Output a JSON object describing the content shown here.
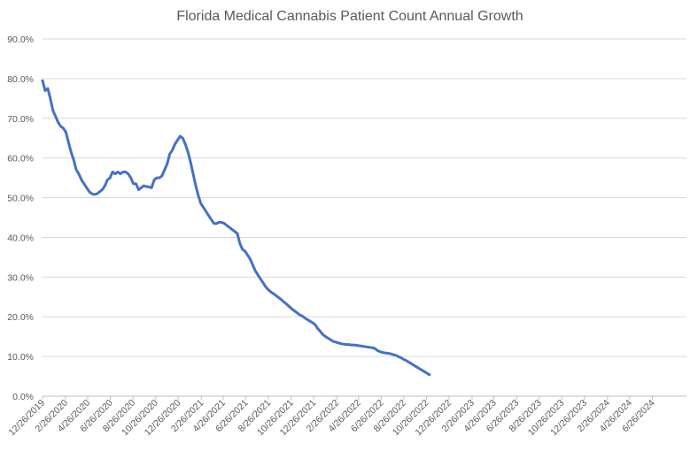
{
  "chart_data": {
    "type": "line",
    "title": "Florida Medical Cannabis Patient Count Annual Growth",
    "xlabel": "",
    "ylabel": "",
    "grid": true,
    "legend": "none",
    "series_color": "#4472c4",
    "y_ticks": [
      "0.0%",
      "10.0%",
      "20.0%",
      "30.0%",
      "40.0%",
      "50.0%",
      "60.0%",
      "70.0%",
      "80.0%",
      "90.0%"
    ],
    "ylim": [
      0,
      90
    ],
    "x_ticks": [
      "12/26/2019",
      "2/26/2020",
      "4/26/2020",
      "6/26/2020",
      "8/26/2020",
      "10/26/2020",
      "12/26/2020",
      "2/26/2021",
      "4/26/2021",
      "6/26/2021",
      "8/26/2021",
      "10/26/2021",
      "12/26/2021",
      "2/26/2022",
      "4/26/2022",
      "6/26/2022",
      "8/26/2022",
      "10/26/2022",
      "12/26/2022",
      "2/26/2023",
      "4/26/2023",
      "6/26/2023",
      "8/26/2023",
      "10/26/2023",
      "12/26/2023",
      "2/26/2024",
      "4/26/2024",
      "6/26/2024"
    ],
    "xlim": [
      "12/26/2019",
      "9/26/2024"
    ],
    "series": [
      {
        "values": [
          [
            "12/26/2019",
            79.5
          ],
          [
            "1/2/2020",
            77.0
          ],
          [
            "1/9/2020",
            77.5
          ],
          [
            "1/16/2020",
            75.0
          ],
          [
            "1/23/2020",
            72.0
          ],
          [
            "1/30/2020",
            70.5
          ],
          [
            "2/6/2020",
            69.0
          ],
          [
            "2/13/2020",
            68.0
          ],
          [
            "2/20/2020",
            67.5
          ],
          [
            "2/27/2020",
            66.5
          ],
          [
            "3/5/2020",
            64.0
          ],
          [
            "3/12/2020",
            61.5
          ],
          [
            "3/19/2020",
            59.5
          ],
          [
            "3/26/2020",
            57.0
          ],
          [
            "4/2/2020",
            56.0
          ],
          [
            "4/9/2020",
            54.5
          ],
          [
            "4/16/2020",
            53.5
          ],
          [
            "4/23/2020",
            52.5
          ],
          [
            "4/30/2020",
            51.5
          ],
          [
            "5/7/2020",
            51.0
          ],
          [
            "5/14/2020",
            50.8
          ],
          [
            "5/21/2020",
            51.0
          ],
          [
            "5/28/2020",
            51.5
          ],
          [
            "6/4/2020",
            52.0
          ],
          [
            "6/11/2020",
            53.0
          ],
          [
            "6/18/2020",
            54.5
          ],
          [
            "6/25/2020",
            55.0
          ],
          [
            "7/2/2020",
            56.5
          ],
          [
            "7/9/2020",
            56.0
          ],
          [
            "7/16/2020",
            56.5
          ],
          [
            "7/23/2020",
            56.0
          ],
          [
            "7/30/2020",
            56.5
          ],
          [
            "8/6/2020",
            56.5
          ],
          [
            "8/13/2020",
            56.0
          ],
          [
            "8/20/2020",
            55.0
          ],
          [
            "8/27/2020",
            53.5
          ],
          [
            "9/3/2020",
            53.5
          ],
          [
            "9/10/2020",
            52.0
          ],
          [
            "9/17/2020",
            52.5
          ],
          [
            "9/24/2020",
            53.0
          ],
          [
            "10/1/2020",
            52.8
          ],
          [
            "10/8/2020",
            52.7
          ],
          [
            "10/15/2020",
            52.5
          ],
          [
            "10/22/2020",
            54.5
          ],
          [
            "10/29/2020",
            55.0
          ],
          [
            "11/5/2020",
            55.0
          ],
          [
            "11/12/2020",
            55.5
          ],
          [
            "11/19/2020",
            57.0
          ],
          [
            "11/26/2020",
            58.5
          ],
          [
            "12/3/2020",
            61.0
          ],
          [
            "12/10/2020",
            62.0
          ],
          [
            "12/17/2020",
            63.5
          ],
          [
            "12/24/2020",
            64.5
          ],
          [
            "12/31/2020",
            65.5
          ],
          [
            "1/7/2021",
            65.0
          ],
          [
            "1/14/2021",
            63.5
          ],
          [
            "1/21/2021",
            61.5
          ],
          [
            "1/28/2021",
            59.0
          ],
          [
            "2/4/2021",
            56.0
          ],
          [
            "2/11/2021",
            53.0
          ],
          [
            "2/18/2021",
            50.5
          ],
          [
            "2/25/2021",
            48.5
          ],
          [
            "3/4/2021",
            47.5
          ],
          [
            "3/11/2021",
            46.5
          ],
          [
            "3/18/2021",
            45.5
          ],
          [
            "3/25/2021",
            44.5
          ],
          [
            "4/1/2021",
            43.5
          ],
          [
            "4/8/2021",
            43.5
          ],
          [
            "4/15/2021",
            43.8
          ],
          [
            "4/22/2021",
            43.8
          ],
          [
            "4/29/2021",
            43.5
          ],
          [
            "5/6/2021",
            43.0
          ],
          [
            "5/13/2021",
            42.5
          ],
          [
            "5/20/2021",
            42.0
          ],
          [
            "5/27/2021",
            41.5
          ],
          [
            "6/3/2021",
            41.0
          ],
          [
            "6/10/2021",
            38.5
          ],
          [
            "6/17/2021",
            37.0
          ],
          [
            "6/24/2021",
            36.5
          ],
          [
            "7/1/2021",
            35.5
          ],
          [
            "7/8/2021",
            34.5
          ],
          [
            "7/15/2021",
            33.0
          ],
          [
            "7/22/2021",
            31.5
          ],
          [
            "7/29/2021",
            30.5
          ],
          [
            "8/5/2021",
            29.5
          ],
          [
            "8/12/2021",
            28.5
          ],
          [
            "8/19/2021",
            27.5
          ],
          [
            "8/26/2021",
            26.8
          ],
          [
            "9/2/2021",
            26.2
          ],
          [
            "9/9/2021",
            25.8
          ],
          [
            "9/16/2021",
            25.3
          ],
          [
            "9/23/2021",
            24.8
          ],
          [
            "9/30/2021",
            24.3
          ],
          [
            "10/7/2021",
            23.7
          ],
          [
            "10/14/2021",
            23.2
          ],
          [
            "10/21/2021",
            22.6
          ],
          [
            "10/28/2021",
            22.0
          ],
          [
            "11/4/2021",
            21.5
          ],
          [
            "11/11/2021",
            21.0
          ],
          [
            "11/18/2021",
            20.5
          ],
          [
            "11/25/2021",
            20.2
          ],
          [
            "12/2/2021",
            19.7
          ],
          [
            "12/9/2021",
            19.3
          ],
          [
            "12/16/2021",
            18.9
          ],
          [
            "12/23/2021",
            18.5
          ],
          [
            "12/30/2021",
            18.0
          ],
          [
            "1/6/2022",
            17.0
          ],
          [
            "1/13/2022",
            16.3
          ],
          [
            "1/20/2022",
            15.5
          ],
          [
            "1/27/2022",
            15.0
          ],
          [
            "2/3/2022",
            14.6
          ],
          [
            "2/10/2022",
            14.2
          ],
          [
            "2/17/2022",
            13.8
          ],
          [
            "2/24/2022",
            13.6
          ],
          [
            "3/3/2022",
            13.4
          ],
          [
            "3/10/2022",
            13.2
          ],
          [
            "3/17/2022",
            13.1
          ],
          [
            "3/24/2022",
            13.0
          ],
          [
            "3/31/2022",
            13.0
          ],
          [
            "4/7/2022",
            12.9
          ],
          [
            "4/14/2022",
            12.9
          ],
          [
            "4/21/2022",
            12.8
          ],
          [
            "4/28/2022",
            12.7
          ],
          [
            "5/5/2022",
            12.6
          ],
          [
            "5/12/2022",
            12.5
          ],
          [
            "5/19/2022",
            12.4
          ],
          [
            "5/26/2022",
            12.3
          ],
          [
            "6/2/2022",
            12.2
          ],
          [
            "6/9/2022",
            12.0
          ],
          [
            "6/16/2022",
            11.5
          ],
          [
            "6/23/2022",
            11.2
          ],
          [
            "6/30/2022",
            11.0
          ],
          [
            "7/7/2022",
            10.9
          ],
          [
            "7/14/2022",
            10.8
          ],
          [
            "7/21/2022",
            10.7
          ],
          [
            "7/28/2022",
            10.5
          ],
          [
            "8/4/2022",
            10.3
          ],
          [
            "8/11/2022",
            10.0
          ],
          [
            "8/18/2022",
            9.7
          ],
          [
            "8/25/2022",
            9.3
          ],
          [
            "9/1/2022",
            9.0
          ],
          [
            "9/8/2022",
            8.6
          ],
          [
            "9/15/2022",
            8.2
          ],
          [
            "9/22/2022",
            7.8
          ],
          [
            "9/29/2022",
            7.4
          ],
          [
            "10/6/2022",
            7.0
          ],
          [
            "10/13/2022",
            6.6
          ],
          [
            "10/20/2022",
            6.2
          ],
          [
            "10/27/2022",
            5.8
          ],
          [
            "11/3/2022",
            5.4
          ]
        ]
      }
    ]
  }
}
